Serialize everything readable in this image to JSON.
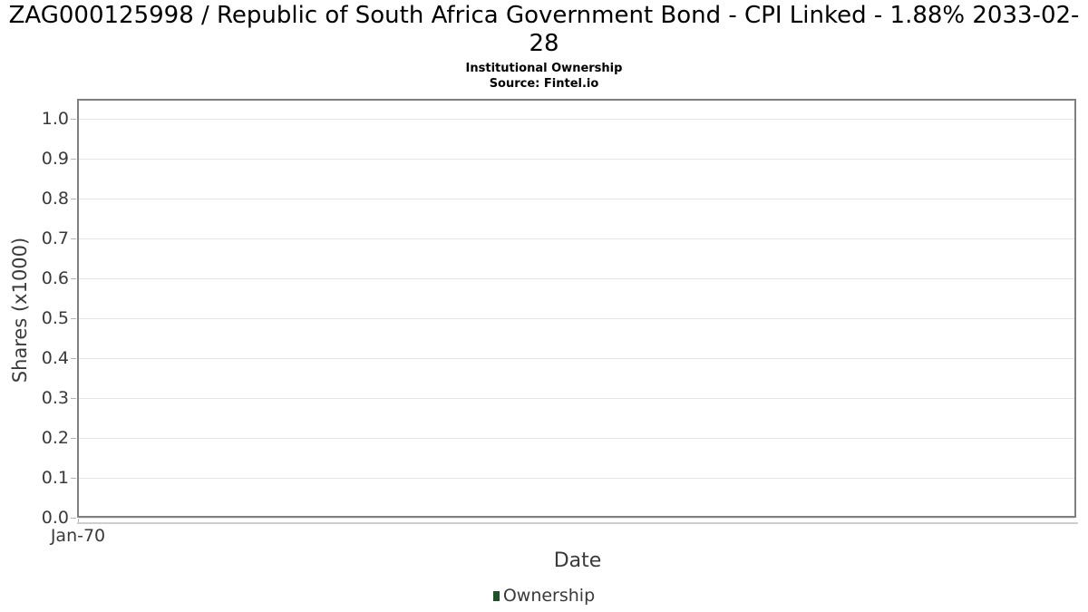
{
  "header": {
    "title": "ZAG000125998 / Republic of South Africa Government Bond - CPI Linked - 1.88% 2033-02-28",
    "subtitle": "Institutional Ownership",
    "source": "Source: Fintel.io"
  },
  "chart_data": {
    "type": "line",
    "title": "ZAG000125998 / Republic of South Africa Government Bond - CPI Linked - 1.88% 2033-02-28",
    "subtitle": "Institutional Ownership",
    "source": "Source: Fintel.io",
    "xlabel": "Date",
    "ylabel": "Shares (x1000)",
    "xticklabels": [
      "Jan-70"
    ],
    "yticks": [
      0.0,
      0.1,
      0.2,
      0.3,
      0.4,
      0.5,
      0.6,
      0.7,
      0.8,
      0.9,
      1.0
    ],
    "ylim": [
      0.0,
      1.05
    ],
    "grid": true,
    "legend_position": "bottom",
    "legend": [
      {
        "label": "Ownership",
        "color": "#1e5128"
      }
    ],
    "series": [
      {
        "name": "Ownership",
        "x": [],
        "values": []
      }
    ]
  },
  "colors": {
    "plot_border": "#7f7f7f",
    "gridline": "#e5e5e5",
    "tick_mark": "#b5b5b5",
    "axis_text": "#3a3a3a",
    "title_text": "#000000",
    "legend_green": "#1e5128"
  }
}
